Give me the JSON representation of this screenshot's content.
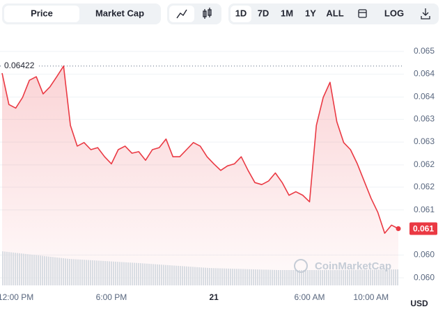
{
  "toolbar": {
    "tabs": [
      "Price",
      "Market Cap"
    ],
    "ranges": [
      "1D",
      "7D",
      "1M",
      "1Y",
      "ALL"
    ],
    "log": "LOG"
  },
  "chart_data": {
    "type": "line",
    "color": "#ea3943",
    "grid": true,
    "currency": "USD",
    "watermark": "CoinMarketCap",
    "high": {
      "value": 0.06422,
      "label": "0.06422"
    },
    "current_price": {
      "value": 0.06101,
      "label": "0.061"
    },
    "categories": [
      null,
      null,
      "12:00 PM",
      null,
      null,
      null,
      null,
      null,
      null,
      null,
      null,
      null,
      null,
      null,
      null,
      null,
      "6:00 PM",
      null,
      null,
      null,
      null,
      null,
      null,
      null,
      null,
      null,
      null,
      null,
      null,
      null,
      null,
      "21",
      null,
      null,
      null,
      null,
      null,
      null,
      null,
      null,
      null,
      null,
      null,
      null,
      null,
      "6:00 AM",
      null,
      null,
      null,
      null,
      null,
      null,
      null,
      null,
      "10:00 AM",
      null,
      null,
      null,
      null
    ],
    "values": [
      0.06408,
      0.06346,
      0.06339,
      0.0636,
      0.06394,
      0.06401,
      0.06367,
      0.06381,
      0.06401,
      0.06422,
      0.06305,
      0.06264,
      0.06271,
      0.06257,
      0.06261,
      0.06243,
      0.06229,
      0.06257,
      0.06264,
      0.0625,
      0.06253,
      0.06236,
      0.06257,
      0.06261,
      0.06278,
      0.06243,
      0.06243,
      0.06257,
      0.06271,
      0.06264,
      0.06243,
      0.06229,
      0.06216,
      0.06225,
      0.06229,
      0.06243,
      0.06216,
      0.06192,
      0.06188,
      0.06195,
      0.06211,
      0.06192,
      0.06167,
      0.06174,
      0.06167,
      0.06154,
      0.06305,
      0.0636,
      0.0639,
      0.06312,
      0.06271,
      0.06257,
      0.06229,
      0.06195,
      0.06161,
      0.06133,
      0.06092,
      0.06108,
      0.06101
    ],
    "ylim": [
      0.05989,
      0.0647
    ],
    "yticks": [
      {
        "value": 0.06451,
        "label": "0.065"
      },
      {
        "value": 0.06406,
        "label": "0.064"
      },
      {
        "value": 0.06361,
        "label": "0.064"
      },
      {
        "value": 0.06317,
        "label": "0.063"
      },
      {
        "value": 0.06272,
        "label": "0.063"
      },
      {
        "value": 0.06227,
        "label": "0.062"
      },
      {
        "value": 0.06183,
        "label": "0.062"
      },
      {
        "value": 0.06138,
        "label": "0.061"
      },
      {
        "value": 0.06049,
        "label": "0.060"
      },
      {
        "value": 0.06004,
        "label": "0.060"
      }
    ]
  }
}
